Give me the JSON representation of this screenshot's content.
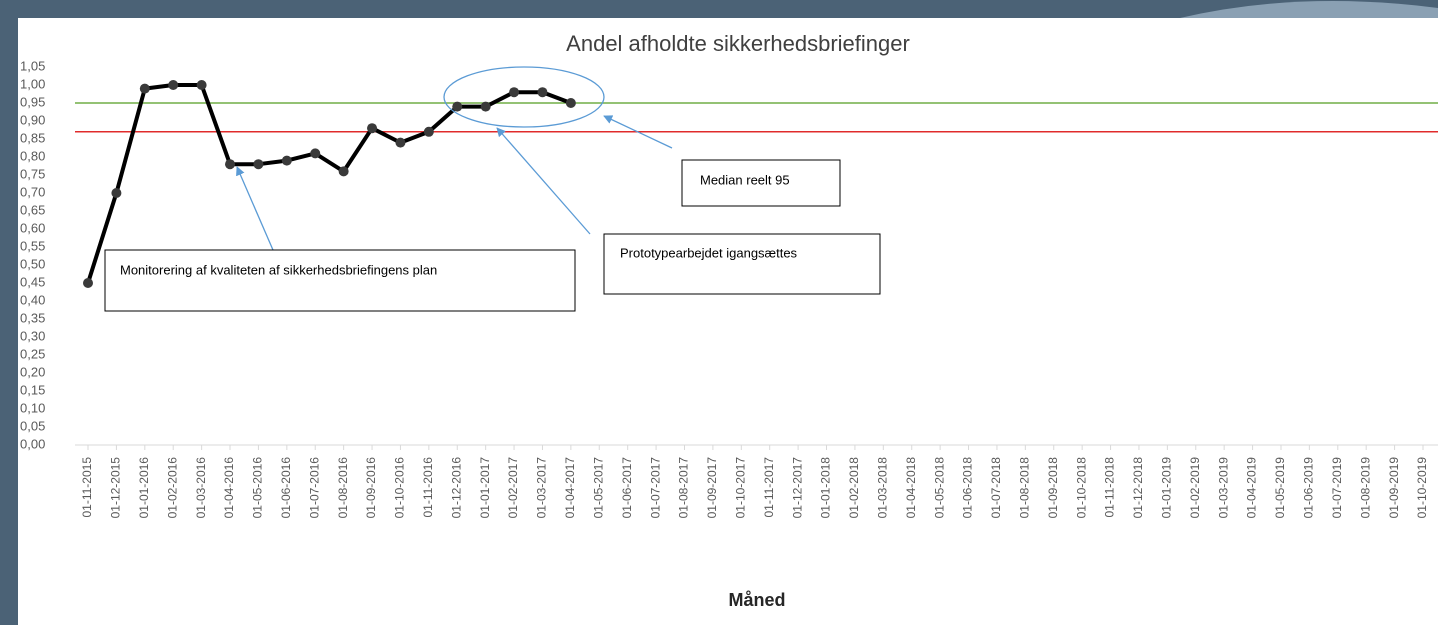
{
  "chart_data": {
    "type": "line",
    "title": "Andel afholdte sikkerhedsbriefinger",
    "x_label": "Måned",
    "categories": [
      "01-11-2015",
      "01-12-2015",
      "01-01-2016",
      "01-02-2016",
      "01-03-2016",
      "01-04-2016",
      "01-05-2016",
      "01-06-2016",
      "01-07-2016",
      "01-08-2016",
      "01-09-2016",
      "01-10-2016",
      "01-11-2016",
      "01-12-2016",
      "01-01-2017",
      "01-02-2017",
      "01-03-2017",
      "01-04-2017",
      "01-05-2017",
      "01-06-2017",
      "01-07-2017",
      "01-08-2017",
      "01-09-2017",
      "01-10-2017",
      "01-11-2017",
      "01-12-2017",
      "01-01-2018",
      "01-02-2018",
      "01-03-2018",
      "01-04-2018",
      "01-05-2018",
      "01-06-2018",
      "01-07-2018",
      "01-08-2018",
      "01-09-2018",
      "01-10-2018",
      "01-11-2018",
      "01-12-2018",
      "01-01-2019",
      "01-02-2019",
      "01-03-2019",
      "01-04-2019",
      "01-05-2019",
      "01-06-2019",
      "01-07-2019",
      "01-08-2019",
      "01-09-2019",
      "01-10-2019"
    ],
    "series": [
      {
        "color": "#000000",
        "marker_color": "#3a3a3a",
        "values": [
          0.45,
          0.7,
          0.99,
          1.0,
          1.0,
          0.78,
          0.78,
          0.79,
          0.81,
          0.76,
          0.88,
          0.84,
          0.87,
          0.94,
          0.94,
          0.98,
          0.98,
          0.95,
          null,
          null,
          null,
          null,
          null,
          null,
          null,
          null,
          null,
          null,
          null,
          null,
          null,
          null,
          null,
          null,
          null,
          null,
          null,
          null,
          null,
          null,
          null,
          null,
          null,
          null,
          null,
          null,
          null,
          null
        ]
      }
    ],
    "reference_lines": [
      {
        "value": 0.95,
        "color": "#70ad47"
      },
      {
        "value": 0.87,
        "color": "#e02b2b"
      }
    ],
    "ylim": [
      0,
      1.05
    ],
    "yticks": [
      {
        "value": 0,
        "label": "0,00"
      },
      {
        "value": 0.05,
        "label": "0,05"
      },
      {
        "value": 0.1,
        "label": "0,10"
      },
      {
        "value": 0.15,
        "label": "0,15"
      },
      {
        "value": 0.2,
        "label": "0,20"
      },
      {
        "value": 0.25,
        "label": "0,25"
      },
      {
        "value": 0.3,
        "label": "0,30"
      },
      {
        "value": 0.35,
        "label": "0,35"
      },
      {
        "value": 0.4,
        "label": "0,40"
      },
      {
        "value": 0.45,
        "label": "0,45"
      },
      {
        "value": 0.5,
        "label": "0,50"
      },
      {
        "value": 0.55,
        "label": "0,55"
      },
      {
        "value": 0.6,
        "label": "0,60"
      },
      {
        "value": 0.65,
        "label": "0,65"
      },
      {
        "value": 0.7,
        "label": "0,70"
      },
      {
        "value": 0.75,
        "label": "0,75"
      },
      {
        "value": 0.8,
        "label": "0,80"
      },
      {
        "value": 0.85,
        "label": "0,85"
      },
      {
        "value": 0.9,
        "label": "0,90"
      },
      {
        "value": 0.95,
        "label": "0,95"
      },
      {
        "value": 1,
        "label": "1,00"
      },
      {
        "value": 1.05,
        "label": "1,05"
      }
    ],
    "annotations": [
      "Monitorering af kvaliteten af sikkerhedsbriefingens plan",
      "Prototypearbejdet igangsættes",
      "Median reelt 95"
    ]
  }
}
